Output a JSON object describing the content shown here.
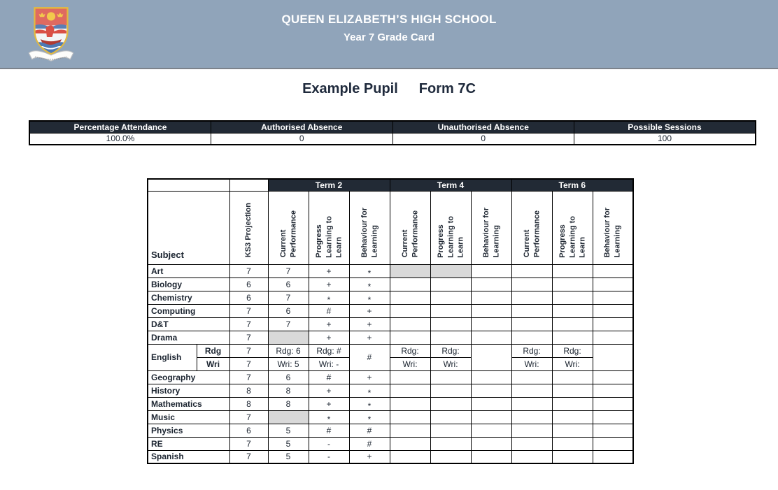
{
  "school": {
    "title_line1": "QUEEN ELIZABETH’S HIGH SCHOOL",
    "title_line2": "Year 7 Grade Card"
  },
  "pupil": {
    "name": "Example Pupil",
    "form": "Form 7C"
  },
  "colors": {
    "banner_bg": "#90A4BA",
    "header_dark": "#222A35",
    "shaded_cell": "#D9D9D9"
  },
  "attendance": {
    "columns": [
      {
        "label": "Percentage Attendance",
        "value": "100.0%"
      },
      {
        "label": "Authorised Absence",
        "value": "0"
      },
      {
        "label": "Unauthorised Absence",
        "value": "0"
      },
      {
        "label": "Possible Sessions",
        "value": "100"
      }
    ]
  },
  "grade_table": {
    "corner_label": "Subject",
    "ks3_header": "KS3 Projection",
    "term_headers": [
      "Term 2",
      "Term 4",
      "Term 6"
    ],
    "repeat_headers": [
      "Current\nPerformance",
      "Progress\nLearning to\nLearn",
      "Behaviour for\nLearning"
    ],
    "rows": [
      {
        "type": "simple",
        "subject": "Art",
        "values": [
          "7",
          "7",
          "+",
          "*",
          "",
          "",
          "",
          "",
          "",
          ""
        ],
        "shaded": [
          4,
          5
        ]
      },
      {
        "type": "simple",
        "subject": "Biology",
        "values": [
          "6",
          "6",
          "+",
          "*",
          "",
          "",
          "",
          "",
          "",
          ""
        ],
        "shaded": []
      },
      {
        "type": "simple",
        "subject": "Chemistry",
        "values": [
          "6",
          "7",
          "*",
          "*",
          "",
          "",
          "",
          "",
          "",
          ""
        ],
        "shaded": []
      },
      {
        "type": "simple",
        "subject": "Computing",
        "values": [
          "7",
          "6",
          "#",
          "+",
          "",
          "",
          "",
          "",
          "",
          ""
        ],
        "shaded": []
      },
      {
        "type": "simple",
        "subject": "D&T",
        "values": [
          "7",
          "7",
          "+",
          "+",
          "",
          "",
          "",
          "",
          "",
          ""
        ],
        "shaded": []
      },
      {
        "type": "simple",
        "subject": "Drama",
        "values": [
          "7",
          "",
          "+",
          "+",
          "",
          "",
          "",
          "",
          "",
          ""
        ],
        "shaded": [
          1
        ]
      },
      {
        "type": "english",
        "subject": "English",
        "sub_rows": [
          {
            "label": "Rdg",
            "ks3": "7",
            "t2_current": "Rdg: 6",
            "t2_progress": "Rdg: #",
            "t4_current": "Rdg:",
            "t4_progress": "Rdg:",
            "t6_current": "Rdg:",
            "t6_progress": "Rdg:"
          },
          {
            "label": "Wri",
            "ks3": "7",
            "t2_current": "Wri: 5",
            "t2_progress": "Wri: -",
            "t4_current": "Wri:",
            "t4_progress": "Wri:",
            "t6_current": "Wri:",
            "t6_progress": "Wri:"
          }
        ],
        "behaviour": {
          "t2": "#",
          "t4": "",
          "t6": ""
        }
      },
      {
        "type": "simple",
        "subject": "Geography",
        "values": [
          "7",
          "6",
          "#",
          "+",
          "",
          "",
          "",
          "",
          "",
          ""
        ],
        "shaded": []
      },
      {
        "type": "simple",
        "subject": "History",
        "values": [
          "8",
          "8",
          "+",
          "*",
          "",
          "",
          "",
          "",
          "",
          ""
        ],
        "shaded": []
      },
      {
        "type": "simple",
        "subject": "Mathematics",
        "values": [
          "8",
          "8",
          "+",
          "*",
          "",
          "",
          "",
          "",
          "",
          ""
        ],
        "shaded": []
      },
      {
        "type": "simple",
        "subject": "Music",
        "values": [
          "7",
          "",
          "*",
          "*",
          "",
          "",
          "",
          "",
          "",
          ""
        ],
        "shaded": [
          1
        ]
      },
      {
        "type": "simple",
        "subject": "Physics",
        "values": [
          "6",
          "5",
          "#",
          "#",
          "",
          "",
          "",
          "",
          "",
          ""
        ],
        "shaded": []
      },
      {
        "type": "simple",
        "subject": "RE",
        "values": [
          "7",
          "5",
          "-",
          "#",
          "",
          "",
          "",
          "",
          "",
          ""
        ],
        "shaded": []
      },
      {
        "type": "simple",
        "subject": "Spanish",
        "values": [
          "7",
          "5",
          "-",
          "+",
          "",
          "",
          "",
          "",
          "",
          ""
        ],
        "shaded": []
      }
    ]
  }
}
